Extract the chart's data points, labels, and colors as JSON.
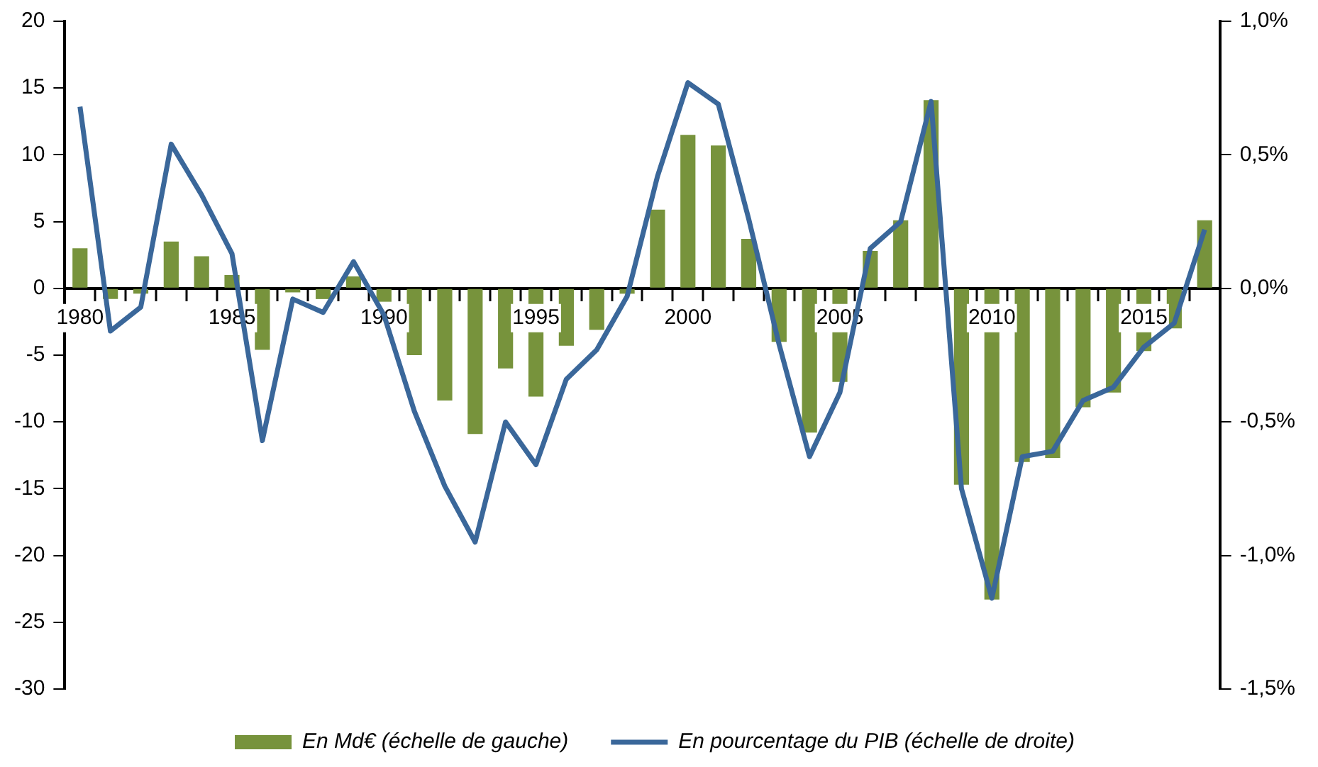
{
  "chart_data": {
    "type": "bar",
    "categories": [
      "1980",
      null,
      null,
      null,
      null,
      "1985",
      null,
      null,
      null,
      null,
      "1990",
      null,
      null,
      null,
      null,
      "1995",
      null,
      null,
      null,
      null,
      "2000",
      null,
      null,
      null,
      null,
      "2005",
      null,
      null,
      null,
      null,
      "2010",
      null,
      null,
      null,
      null,
      "2015",
      null,
      null
    ],
    "series": [
      {
        "name": "En Md€ (échelle de gauche)",
        "type": "bar",
        "color": "#77933c",
        "values": [
          3.0,
          -0.8,
          -0.4,
          3.5,
          2.4,
          1.0,
          -4.6,
          -0.3,
          -0.8,
          0.9,
          -1.0,
          -5.0,
          -8.4,
          -10.9,
          -6.0,
          -8.1,
          -4.3,
          -3.1,
          -0.4,
          5.9,
          11.5,
          10.7,
          3.7,
          -4.0,
          -10.8,
          -7.0,
          2.8,
          5.1,
          14.1,
          -14.7,
          -23.3,
          -13.0,
          -12.7,
          -8.9,
          -7.8,
          -4.7,
          -3.0,
          5.1
        ]
      },
      {
        "name": "En pourcentage du PIB (échelle de droite)",
        "type": "line",
        "axis": "y2",
        "color": "#3a679a",
        "values": [
          0.68,
          -0.16,
          -0.07,
          0.54,
          0.35,
          0.13,
          -0.57,
          -0.04,
          -0.09,
          0.1,
          -0.1,
          -0.46,
          -0.74,
          -0.95,
          -0.5,
          -0.66,
          -0.34,
          -0.23,
          -0.03,
          0.42,
          0.77,
          0.69,
          0.26,
          -0.21,
          -0.63,
          -0.39,
          0.15,
          0.25,
          0.7,
          -0.75,
          -1.16,
          -0.63,
          -0.61,
          -0.42,
          -0.37,
          -0.22,
          -0.13,
          0.22
        ]
      }
    ],
    "ylim": [
      -30,
      20
    ],
    "yticks": [
      -30,
      -25,
      -20,
      -15,
      -10,
      -5,
      0,
      5,
      10,
      15,
      20
    ],
    "y2lim": [
      -1.5,
      1.0
    ],
    "y2ticks": [
      {
        "value": -1.5,
        "label": "-1,5%"
      },
      {
        "value": -1.0,
        "label": "-1,0%"
      },
      {
        "value": -0.5,
        "label": "-0,5%"
      },
      {
        "value": 0,
        "label": "0,0%"
      },
      {
        "value": 0.5,
        "label": "0,5%"
      },
      {
        "value": 1.0,
        "label": "1,0%"
      }
    ],
    "grid": false,
    "legend": "bottom",
    "marker": "none",
    "line_style": "solid"
  }
}
